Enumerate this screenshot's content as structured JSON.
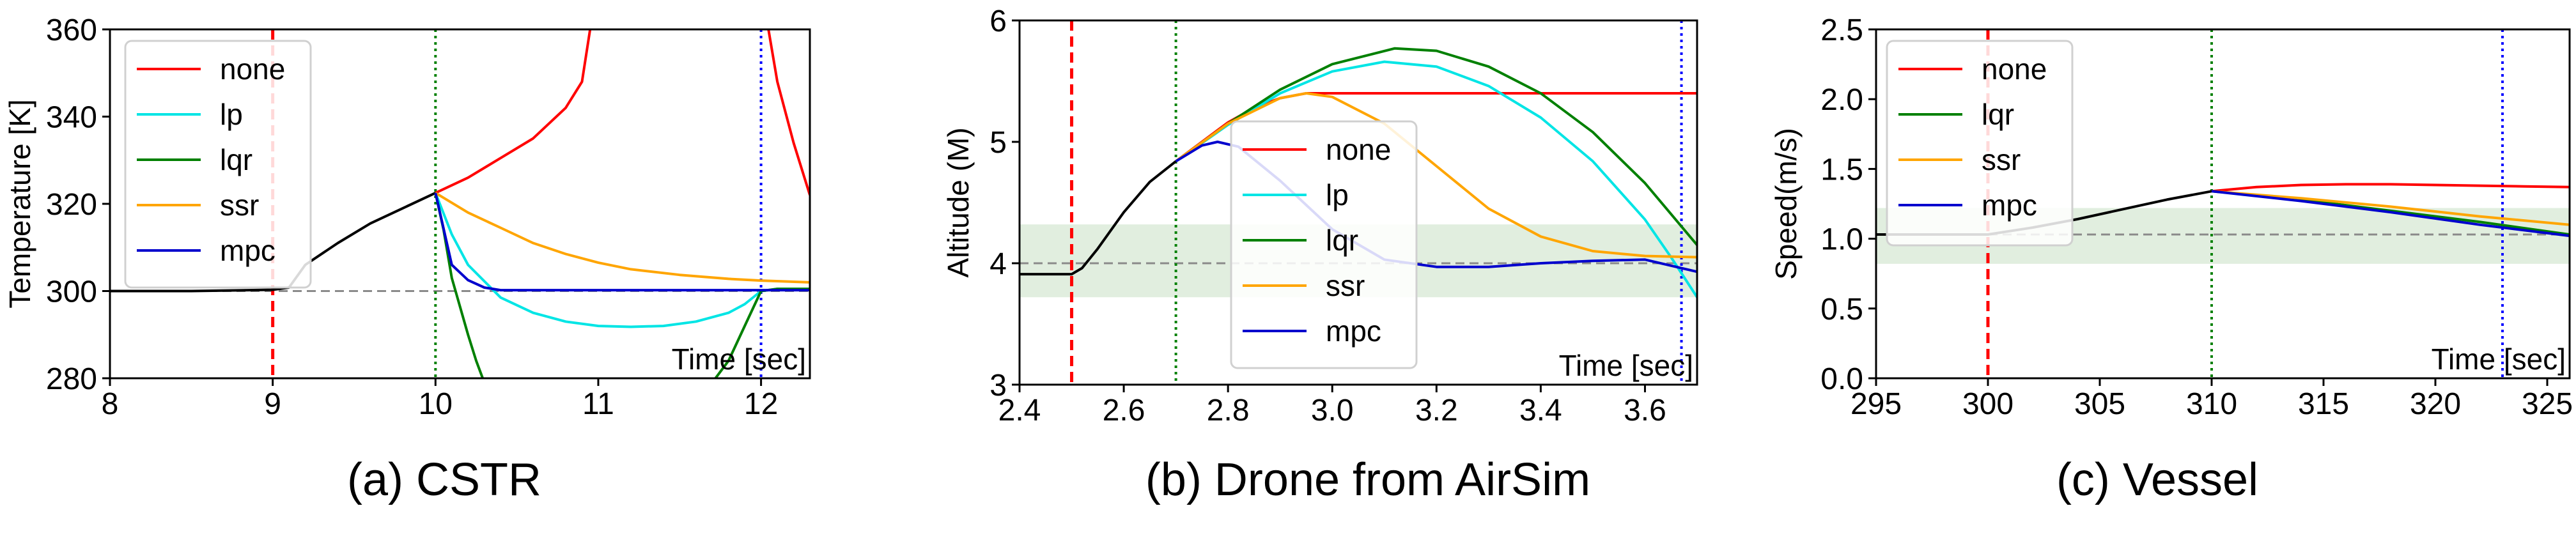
{
  "chart_data": [
    {
      "type": "line",
      "caption": "(a) CSTR",
      "ylabel": "Temperature [K]",
      "time_label": "Time [sec]",
      "xlim": [
        8,
        12.3
      ],
      "ylim": [
        280,
        360
      ],
      "xticks": [
        "8",
        "9",
        "10",
        "11",
        "12"
      ],
      "yticks": [
        "280",
        "300",
        "320",
        "340",
        "360"
      ],
      "grid": false,
      "legend_position": "top-left",
      "reference_line": 300,
      "vlines": [
        {
          "x": 9.0,
          "color": "#ff0000",
          "style": "dashed"
        },
        {
          "x": 10.0,
          "color": "#008000",
          "style": "dotted"
        },
        {
          "x": 12.0,
          "color": "#0000ff",
          "style": "dotted"
        }
      ],
      "series": [
        {
          "name": "",
          "color": "#000000",
          "x": [
            8,
            8.5,
            9.0,
            9.1,
            9.2,
            9.4,
            9.6,
            9.8,
            10.0
          ],
          "y": [
            300,
            300,
            300.3,
            300.8,
            306,
            311,
            315.5,
            319,
            322.5
          ]
        },
        {
          "name": "none",
          "color": "#ff0000",
          "x": [
            10.0,
            10.2,
            10.4,
            10.6,
            10.8,
            10.9,
            10.95,
            11.0,
            12.0,
            12.1,
            12.2,
            12.3
          ],
          "y": [
            322.5,
            326,
            330.5,
            335,
            342,
            348,
            360,
            370,
            370,
            348,
            334,
            322
          ]
        },
        {
          "name": "lp",
          "color": "#00e5e5",
          "x": [
            10.0,
            10.1,
            10.2,
            10.4,
            10.6,
            10.8,
            11.0,
            11.2,
            11.4,
            11.6,
            11.8,
            11.9,
            12.0,
            12.1,
            12.3
          ],
          "y": [
            322.5,
            313,
            306,
            298.5,
            295,
            293,
            292,
            291.8,
            292,
            293,
            295,
            297,
            300,
            300.5,
            300.5
          ]
        },
        {
          "name": "lqr",
          "color": "#008000",
          "x": [
            10.0,
            10.05,
            10.1,
            10.2,
            10.25,
            10.3,
            11.7,
            11.8,
            11.9,
            12.0,
            12.1,
            12.3
          ],
          "y": [
            322.5,
            314,
            303,
            290,
            284,
            279,
            279,
            284,
            292,
            300,
            300.5,
            300.5
          ]
        },
        {
          "name": "ssr",
          "color": "#ffa500",
          "x": [
            10.0,
            10.2,
            10.4,
            10.6,
            10.8,
            11.0,
            11.2,
            11.5,
            11.8,
            12.0,
            12.3
          ],
          "y": [
            322.5,
            318,
            314.5,
            311,
            308.5,
            306.5,
            305,
            303.7,
            302.8,
            302.4,
            302
          ]
        },
        {
          "name": "mpc",
          "color": "#0000cd",
          "x": [
            10.0,
            10.1,
            10.2,
            10.3,
            10.4,
            10.6,
            11.0,
            11.5,
            12.0,
            12.3
          ],
          "y": [
            322.5,
            306,
            302.5,
            300.8,
            300.2,
            300.2,
            300.2,
            300.2,
            300.2,
            300.2
          ]
        }
      ]
    },
    {
      "type": "line",
      "caption": "(b) Drone from AirSim",
      "ylabel": "Altitude (M)",
      "time_label": "Time [sec]",
      "xlim": [
        2.4,
        3.7
      ],
      "ylim": [
        3,
        6
      ],
      "xticks": [
        "2.4",
        "2.6",
        "2.8",
        "3.0",
        "3.2",
        "3.4",
        "3.6"
      ],
      "yticks": [
        "3",
        "4",
        "5",
        "6"
      ],
      "grid": false,
      "legend_position": "center",
      "reference_line": 4.0,
      "safe_band": [
        3.72,
        4.32
      ],
      "vlines": [
        {
          "x": 2.5,
          "color": "#ff0000",
          "style": "dashed"
        },
        {
          "x": 2.7,
          "color": "#008000",
          "style": "dotted"
        },
        {
          "x": 3.67,
          "color": "#0000ff",
          "style": "dotted"
        }
      ],
      "series": [
        {
          "name": "",
          "color": "#000000",
          "x": [
            2.4,
            2.5,
            2.52,
            2.55,
            2.6,
            2.65,
            2.7
          ],
          "y": [
            3.91,
            3.91,
            3.96,
            4.12,
            4.42,
            4.67,
            4.84
          ]
        },
        {
          "name": "none",
          "color": "#ff0000",
          "x": [
            2.7,
            2.75,
            2.8,
            2.85,
            2.9,
            2.95,
            3.0,
            3.1,
            3.3,
            3.5,
            3.7
          ],
          "y": [
            4.84,
            5.0,
            5.16,
            5.28,
            5.36,
            5.4,
            5.4,
            5.4,
            5.4,
            5.4,
            5.4
          ]
        },
        {
          "name": "lp",
          "color": "#00e5e5",
          "x": [
            2.7,
            2.8,
            2.9,
            3.0,
            3.1,
            3.2,
            3.3,
            3.4,
            3.5,
            3.6,
            3.65,
            3.7
          ],
          "y": [
            4.84,
            5.14,
            5.4,
            5.58,
            5.66,
            5.62,
            5.46,
            5.2,
            4.84,
            4.36,
            4.05,
            3.72
          ]
        },
        {
          "name": "lqr",
          "color": "#008000",
          "x": [
            2.7,
            2.8,
            2.9,
            3.0,
            3.12,
            3.2,
            3.3,
            3.4,
            3.5,
            3.6,
            3.7
          ],
          "y": [
            4.84,
            5.15,
            5.43,
            5.64,
            5.77,
            5.75,
            5.62,
            5.4,
            5.08,
            4.66,
            4.15
          ]
        },
        {
          "name": "ssr",
          "color": "#ffa500",
          "x": [
            2.7,
            2.8,
            2.9,
            2.95,
            3.0,
            3.1,
            3.2,
            3.3,
            3.4,
            3.5,
            3.6,
            3.7
          ],
          "y": [
            4.84,
            5.15,
            5.36,
            5.4,
            5.37,
            5.15,
            4.8,
            4.45,
            4.22,
            4.1,
            4.06,
            4.05
          ]
        },
        {
          "name": "mpc",
          "color": "#0000cd",
          "x": [
            2.7,
            2.75,
            2.78,
            2.82,
            2.9,
            3.0,
            3.1,
            3.2,
            3.3,
            3.4,
            3.5,
            3.6,
            3.7
          ],
          "y": [
            4.84,
            4.97,
            5.0,
            4.96,
            4.68,
            4.28,
            4.03,
            3.97,
            3.97,
            4.0,
            4.02,
            4.03,
            3.93
          ]
        }
      ]
    },
    {
      "type": "line",
      "caption": "(c) Vessel",
      "ylabel": "Speed(m/s)",
      "time_label": "Time [sec]",
      "xlim": [
        295,
        326
      ],
      "ylim": [
        0.0,
        2.5
      ],
      "xticks": [
        "295",
        "300",
        "305",
        "310",
        "315",
        "320",
        "325"
      ],
      "yticks": [
        "0.0",
        "0.5",
        "1.0",
        "1.5",
        "2.0",
        "2.5"
      ],
      "grid": false,
      "legend_position": "top-left",
      "reference_line": 1.03,
      "safe_band": [
        0.82,
        1.22
      ],
      "vlines": [
        {
          "x": 300,
          "color": "#ff0000",
          "style": "dashed"
        },
        {
          "x": 310,
          "color": "#008000",
          "style": "dotted"
        },
        {
          "x": 323,
          "color": "#0000ff",
          "style": "dotted"
        }
      ],
      "series": [
        {
          "name": "",
          "color": "#000000",
          "x": [
            295,
            300,
            302,
            304,
            306,
            308,
            310
          ],
          "y": [
            1.03,
            1.03,
            1.08,
            1.14,
            1.21,
            1.28,
            1.34
          ]
        },
        {
          "name": "none",
          "color": "#ff0000",
          "x": [
            310,
            312,
            314,
            316,
            318,
            320,
            322,
            324,
            326
          ],
          "y": [
            1.34,
            1.37,
            1.385,
            1.39,
            1.39,
            1.385,
            1.38,
            1.375,
            1.37
          ]
        },
        {
          "name": "lqr",
          "color": "#008000",
          "x": [
            310,
            314,
            318,
            322,
            326
          ],
          "y": [
            1.34,
            1.28,
            1.2,
            1.12,
            1.03
          ]
        },
        {
          "name": "ssr",
          "color": "#ffa500",
          "x": [
            310,
            314,
            318,
            322,
            326
          ],
          "y": [
            1.34,
            1.29,
            1.23,
            1.16,
            1.1
          ]
        },
        {
          "name": "mpc",
          "color": "#0000cd",
          "x": [
            310,
            314,
            318,
            322,
            326
          ],
          "y": [
            1.34,
            1.27,
            1.19,
            1.1,
            1.02
          ]
        }
      ]
    }
  ]
}
